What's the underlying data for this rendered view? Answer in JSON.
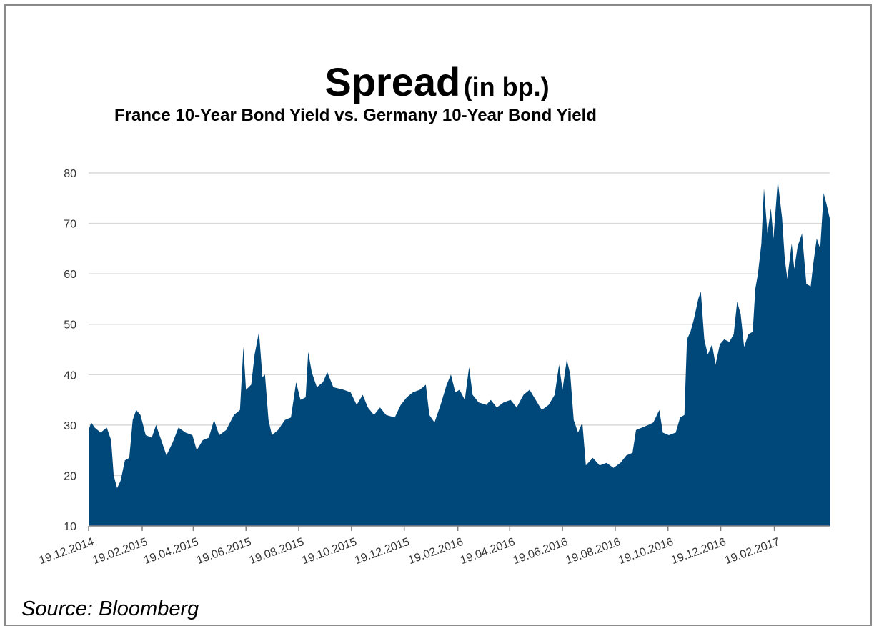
{
  "chart_data": {
    "type": "area",
    "title": "Spread",
    "title_unit": "(in bp.)",
    "subtitle": "France 10-Year Bond Yield vs. Germany  10-Year Bond Yield",
    "source": "Source: Bloomberg",
    "ylim": [
      10,
      80
    ],
    "yticks": [
      "10",
      "20",
      "30",
      "40",
      "50",
      "60",
      "70",
      "80"
    ],
    "x_tick_labels": [
      "19.12.2014",
      "19.02.2015",
      "19.04.2015",
      "19.06.2015",
      "19.08.2015",
      "19.10.2015",
      "19.12.2015",
      "19.02.2016",
      "19.04.2016",
      "19.06.2016",
      "19.08.2016",
      "19.10.2016",
      "19.12.2016",
      "19.02.2017"
    ],
    "grid": true,
    "color": "#00477a",
    "points": [
      [
        "19.12.2014",
        29
      ],
      [
        "22.12.2014",
        30.5
      ],
      [
        "26.12.2014",
        29.5
      ],
      [
        "02.01.2015",
        28.5
      ],
      [
        "09.01.2015",
        29.5
      ],
      [
        "14.01.2015",
        27
      ],
      [
        "17.01.2015",
        20
      ],
      [
        "21.01.2015",
        17.5
      ],
      [
        "25.01.2015",
        19
      ],
      [
        "30.01.2015",
        23
      ],
      [
        "04.02.2015",
        23.5
      ],
      [
        "08.02.2015",
        31
      ],
      [
        "12.02.2015",
        33
      ],
      [
        "17.02.2015",
        32
      ],
      [
        "23.02.2015",
        28
      ],
      [
        "02.03.2015",
        27.5
      ],
      [
        "07.03.2015",
        30
      ],
      [
        "13.03.2015",
        27
      ],
      [
        "19.03.2015",
        24
      ],
      [
        "26.03.2015",
        26.5
      ],
      [
        "02.04.2015",
        29.5
      ],
      [
        "10.04.2015",
        28.5
      ],
      [
        "18.04.2015",
        28
      ],
      [
        "23.04.2015",
        25
      ],
      [
        "30.04.2015",
        27
      ],
      [
        "07.05.2015",
        27.5
      ],
      [
        "13.05.2015",
        31
      ],
      [
        "19.05.2015",
        28
      ],
      [
        "27.05.2015",
        29
      ],
      [
        "05.06.2015",
        32
      ],
      [
        "12.06.2015",
        33
      ],
      [
        "16.06.2015",
        45.5
      ],
      [
        "19.06.2015",
        37
      ],
      [
        "25.06.2015",
        38
      ],
      [
        "29.06.2015",
        44
      ],
      [
        "04.07.2015",
        48.5
      ],
      [
        "08.07.2015",
        39.5
      ],
      [
        "11.07.2015",
        40
      ],
      [
        "15.07.2015",
        31
      ],
      [
        "19.07.2015",
        28
      ],
      [
        "26.07.2015",
        29
      ],
      [
        "03.08.2015",
        31
      ],
      [
        "10.08.2015",
        31.5
      ],
      [
        "16.08.2015",
        38.5
      ],
      [
        "21.08.2015",
        35
      ],
      [
        "27.08.2015",
        35.5
      ],
      [
        "30.08.2015",
        44.5
      ],
      [
        "03.09.2015",
        40.5
      ],
      [
        "09.09.2015",
        37.5
      ],
      [
        "16.09.2015",
        38.5
      ],
      [
        "21.09.2015",
        40.5
      ],
      [
        "28.09.2015",
        37.5
      ],
      [
        "10.10.2015",
        37
      ],
      [
        "18.10.2015",
        36.5
      ],
      [
        "25.10.2015",
        34
      ],
      [
        "01.11.2015",
        36
      ],
      [
        "07.11.2015",
        33.5
      ],
      [
        "14.11.2015",
        32
      ],
      [
        "21.11.2015",
        33.5
      ],
      [
        "28.11.2015",
        32
      ],
      [
        "08.12.2015",
        31.5
      ],
      [
        "15.12.2015",
        34
      ],
      [
        "22.12.2015",
        35.5
      ],
      [
        "29.12.2015",
        36.5
      ],
      [
        "06.01.2016",
        37
      ],
      [
        "13.01.2016",
        38
      ],
      [
        "17.01.2016",
        32
      ],
      [
        "23.01.2016",
        30.5
      ],
      [
        "30.01.2016",
        34
      ],
      [
        "06.02.2016",
        38
      ],
      [
        "11.02.2016",
        40
      ],
      [
        "16.02.2016",
        36.5
      ],
      [
        "21.02.2016",
        37
      ],
      [
        "27.02.2016",
        35
      ],
      [
        "03.03.2016",
        41.5
      ],
      [
        "07.03.2016",
        36
      ],
      [
        "14.03.2016",
        34.5
      ],
      [
        "23.03.2016",
        34
      ],
      [
        "28.03.2016",
        35
      ],
      [
        "04.04.2016",
        33.5
      ],
      [
        "12.04.2016",
        34.5
      ],
      [
        "20.04.2016",
        35
      ],
      [
        "27.04.2016",
        33.5
      ],
      [
        "05.05.2016",
        36
      ],
      [
        "12.05.2016",
        37
      ],
      [
        "19.05.2016",
        35
      ],
      [
        "26.05.2016",
        33
      ],
      [
        "03.06.2016",
        34
      ],
      [
        "10.06.2016",
        36
      ],
      [
        "15.06.2016",
        42
      ],
      [
        "19.06.2016",
        37
      ],
      [
        "24.06.2016",
        43
      ],
      [
        "28.06.2016",
        40
      ],
      [
        "02.07.2016",
        31
      ],
      [
        "07.07.2016",
        28.5
      ],
      [
        "12.07.2016",
        30.5
      ],
      [
        "16.07.2016",
        22
      ],
      [
        "24.07.2016",
        23.5
      ],
      [
        "01.08.2016",
        22
      ],
      [
        "09.08.2016",
        22.5
      ],
      [
        "17.08.2016",
        21.5
      ],
      [
        "25.08.2016",
        22.5
      ],
      [
        "01.09.2016",
        24
      ],
      [
        "08.09.2016",
        24.5
      ],
      [
        "12.09.2016",
        29
      ],
      [
        "19.09.2016",
        29.5
      ],
      [
        "26.09.2016",
        30
      ],
      [
        "02.10.2016",
        30.5
      ],
      [
        "09.10.2016",
        33
      ],
      [
        "13.10.2016",
        28.5
      ],
      [
        "20.10.2016",
        28
      ],
      [
        "28.10.2016",
        28.5
      ],
      [
        "02.11.2016",
        31.5
      ],
      [
        "07.11.2016",
        32
      ],
      [
        "10.11.2016",
        47
      ],
      [
        "14.11.2016",
        48.5
      ],
      [
        "18.11.2016",
        51
      ],
      [
        "23.11.2016",
        55
      ],
      [
        "26.11.2016",
        56.5
      ],
      [
        "30.11.2016",
        47
      ],
      [
        "04.12.2016",
        44
      ],
      [
        "09.12.2016",
        46
      ],
      [
        "13.12.2016",
        42
      ],
      [
        "18.12.2016",
        46
      ],
      [
        "23.12.2016",
        47
      ],
      [
        "29.12.2016",
        46.5
      ],
      [
        "03.01.2017",
        48
      ],
      [
        "07.01.2017",
        54.5
      ],
      [
        "11.01.2017",
        52
      ],
      [
        "15.01.2017",
        45.5
      ],
      [
        "20.01.2017",
        48
      ],
      [
        "25.01.2017",
        48.5
      ],
      [
        "28.01.2017",
        57
      ],
      [
        "31.01.2017",
        60
      ],
      [
        "04.02.2017",
        66
      ],
      [
        "07.02.2017",
        77
      ],
      [
        "11.02.2017",
        68
      ],
      [
        "15.02.2017",
        73
      ],
      [
        "18.02.2017",
        67
      ],
      [
        "23.02.2017",
        78.5
      ],
      [
        "28.02.2017",
        71
      ],
      [
        "03.03.2017",
        63
      ],
      [
        "06.03.2017",
        59
      ],
      [
        "11.03.2017",
        66
      ],
      [
        "14.03.2017",
        61
      ],
      [
        "18.03.2017",
        65.5
      ],
      [
        "23.03.2017",
        68
      ],
      [
        "28.03.2017",
        58
      ],
      [
        "02.04.2017",
        57.5
      ],
      [
        "05.04.2017",
        62
      ],
      [
        "09.04.2017",
        67
      ],
      [
        "13.04.2017",
        65
      ],
      [
        "17.04.2017",
        76
      ],
      [
        "20.04.2017",
        74
      ],
      [
        "24.04.2017",
        71
      ]
    ]
  }
}
